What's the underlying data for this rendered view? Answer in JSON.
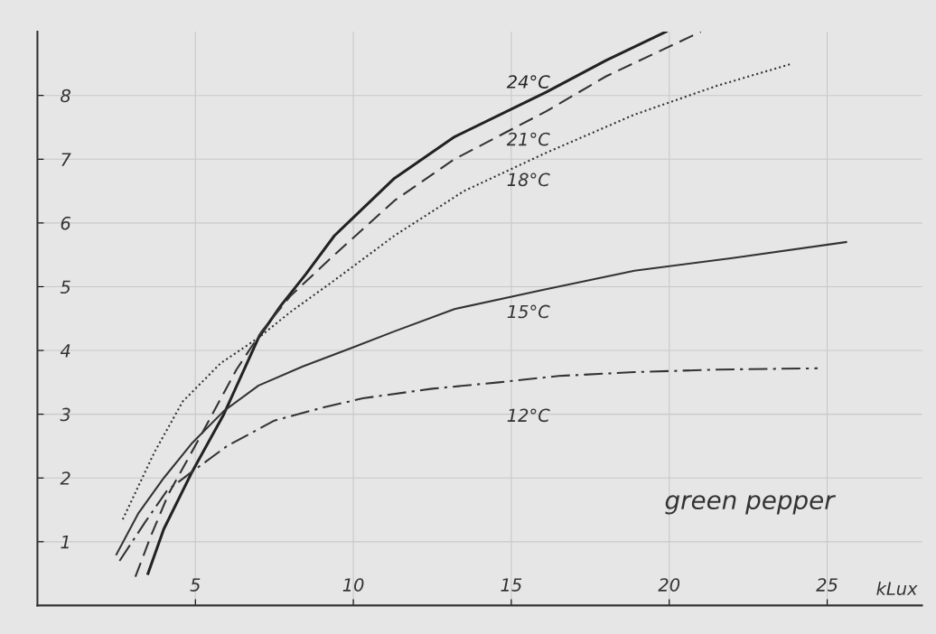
{
  "chart_data": {
    "type": "line",
    "title": "green pepper",
    "xlabel": "kLux",
    "xlim": [
      0,
      28
    ],
    "ylim": [
      0,
      9
    ],
    "xticks": [
      5,
      10,
      15,
      20,
      25
    ],
    "yticks": [
      1,
      2,
      3,
      4,
      5,
      6,
      7,
      8
    ],
    "grid": true,
    "series": [
      {
        "name": "24°C",
        "color": "#222222",
        "line_style": "solid",
        "x": [
          3.5,
          4.0,
          4.9,
          5.9,
          7.0,
          7.7,
          8.5,
          9.4,
          11.3,
          13.2,
          16.1,
          18,
          19.9
        ],
        "values": [
          0.5,
          1.2,
          2.1,
          3.0,
          4.2,
          4.7,
          5.2,
          5.8,
          6.7,
          7.35,
          8.05,
          8.55,
          9.0
        ]
      },
      {
        "name": "21°C",
        "color": "#333333",
        "line_style": "dashed",
        "x": [
          3.1,
          3.6,
          4.15,
          5.1,
          6.3,
          7.1,
          8,
          9.4,
          11.3,
          13.2,
          16.1,
          18,
          21
        ],
        "values": [
          0.45,
          1.1,
          1.75,
          2.6,
          3.7,
          4.3,
          4.85,
          5.5,
          6.35,
          7.0,
          7.75,
          8.3,
          9.0
        ]
      },
      {
        "name": "18°C",
        "color": "#333333",
        "line_style": "dotted",
        "x": [
          2.7,
          3.7,
          4.6,
          5.8,
          7,
          8,
          9.4,
          11.3,
          13.5,
          16.1,
          18.9,
          21.5,
          23.9
        ],
        "values": [
          1.35,
          2.4,
          3.2,
          3.8,
          4.2,
          4.6,
          5.1,
          5.8,
          6.5,
          7.1,
          7.7,
          8.15,
          8.5
        ]
      },
      {
        "name": "15°C",
        "color": "#333333",
        "line_style": "solid",
        "x": [
          2.5,
          3.2,
          4,
          4.9,
          5.9,
          7,
          8.4,
          10,
          11.3,
          13.2,
          16,
          18.9,
          22,
          25.6
        ],
        "values": [
          0.8,
          1.45,
          2.0,
          2.55,
          3.05,
          3.45,
          3.75,
          4.05,
          4.3,
          4.65,
          4.95,
          5.25,
          5.45,
          5.7
        ]
      },
      {
        "name": "12°C",
        "color": "#333333",
        "line_style": "dashdot",
        "x": [
          2.6,
          3.4,
          4.1,
          4.9,
          6,
          7.5,
          9,
          10.3,
          12.5,
          14.6,
          16.5,
          18.9,
          21.5,
          24.7
        ],
        "values": [
          0.7,
          1.3,
          1.8,
          2.1,
          2.5,
          2.9,
          3.1,
          3.25,
          3.4,
          3.5,
          3.6,
          3.66,
          3.7,
          3.72
        ]
      }
    ]
  }
}
